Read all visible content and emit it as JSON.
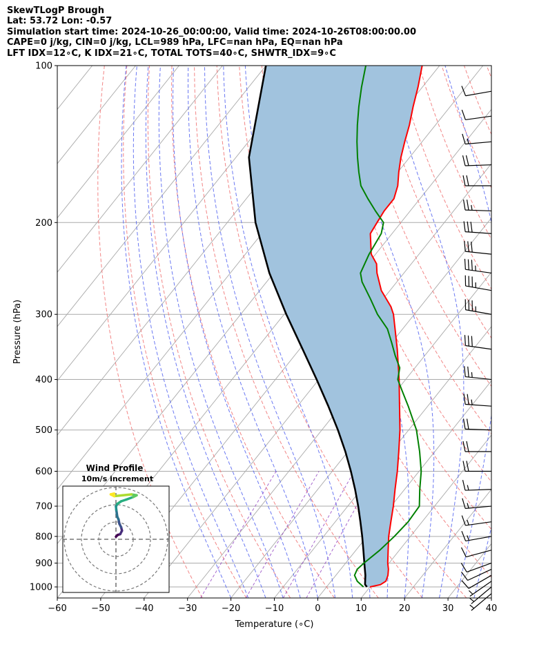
{
  "header": {
    "line1": "SkewTLogP Brough",
    "line2": "Lat: 53.72   Lon: -0.57",
    "line3": "Simulation start time: 2024-10-26_00:00:00, Valid time: 2024-10-26T08:00:00.00",
    "line4": "CAPE=0 j/kg, CIN=0 j/kg, LCL=989 hPa, LFC=nan hPa, EQ=nan hPa",
    "line5": "LFT IDX=12∘C, K IDX=21∘C, TOTAL TOTS=40∘C, SHWTR_IDX=9∘C"
  },
  "chart_data": [
    {
      "type": "line",
      "subtype": "skew-t log-p",
      "xlabel": "Temperature (∘C)",
      "ylabel": "Pressure (hPa)",
      "xlim": [
        -60,
        40
      ],
      "ylim": [
        1050,
        100
      ],
      "y_scale": "log",
      "x_ticks": [
        -60,
        -50,
        -40,
        -30,
        -20,
        -10,
        0,
        10,
        20,
        30,
        40
      ],
      "x_tick_labels": [
        "−60",
        "−50",
        "−40",
        "−30",
        "−20",
        "−10",
        "0",
        "10",
        "20",
        "30",
        "40"
      ],
      "y_ticks": [
        100,
        200,
        300,
        400,
        500,
        600,
        700,
        800,
        900,
        1000
      ],
      "y_tick_labels": [
        "100",
        "200",
        "300",
        "400",
        "500",
        "600",
        "700",
        "800",
        "900",
        "1000"
      ],
      "grid": true,
      "colors": {
        "temperature": "#ff0000",
        "dewpoint": "#008000",
        "parcel": "#000000",
        "shade": "#a1c3de",
        "isotherm": "#aaaaaa",
        "dry_adiabat": "#f07070",
        "moist_adiabat": "#5060f0",
        "mixing_ratio": "#9040c0"
      },
      "series": [
        {
          "key": "temperature",
          "pressure": [
            1000,
            990,
            975,
            950,
            925,
            900,
            850,
            800,
            750,
            700,
            650,
            600,
            550,
            500,
            450,
            400,
            350,
            300,
            290,
            270,
            250,
            240,
            230,
            210,
            200,
            190,
            180,
            170,
            160,
            150,
            140,
            130,
            120,
            110,
            100
          ],
          "temperature": [
            10.0,
            12.0,
            12.6,
            12.0,
            11.0,
            9.7,
            7.4,
            5.0,
            2.8,
            0.5,
            -2.2,
            -5.0,
            -8.3,
            -12.0,
            -16.5,
            -21.5,
            -27.5,
            -34.8,
            -36.8,
            -42.0,
            -46.2,
            -48.0,
            -51.0,
            -55.0,
            -55.5,
            -56.0,
            -56.0,
            -57.5,
            -59.8,
            -62.0,
            -64.0,
            -66.0,
            -68.5,
            -71.0,
            -74.0
          ]
        },
        {
          "key": "dewpoint",
          "pressure": [
            1000,
            975,
            950,
            925,
            900,
            850,
            800,
            750,
            700,
            650,
            600,
            550,
            500,
            450,
            420,
            400,
            380,
            360,
            340,
            320,
            300,
            280,
            260,
            250,
            230,
            210,
            200,
            190,
            180,
            170,
            160,
            150,
            140,
            130,
            120,
            110,
            100
          ],
          "temperature": [
            8.5,
            6.0,
            4.3,
            3.8,
            4.2,
            5.5,
            6.3,
            6.8,
            6.5,
            3.5,
            0.5,
            -3.5,
            -8.2,
            -14.5,
            -18.8,
            -21.8,
            -23.5,
            -26.8,
            -30.0,
            -33.5,
            -38.5,
            -43.0,
            -48.0,
            -50.0,
            -51.5,
            -52.5,
            -54.0,
            -58.0,
            -62.0,
            -66.0,
            -69.0,
            -72.0,
            -75.0,
            -78.0,
            -81.0,
            -84.0,
            -87.0
          ]
        },
        {
          "key": "parcel",
          "pressure": [
            1000,
            989,
            950,
            900,
            850,
            800,
            750,
            700,
            650,
            600,
            550,
            500,
            450,
            400,
            350,
            300,
            250,
            200,
            150,
            100
          ],
          "temperature": [
            9.3,
            8.4,
            6.8,
            4.3,
            1.7,
            -1.1,
            -4.2,
            -7.6,
            -11.4,
            -15.7,
            -20.6,
            -26.3,
            -32.9,
            -40.5,
            -49.3,
            -59.5,
            -71.0,
            -83.5,
            -97.0,
            -110.0
          ]
        }
      ],
      "wind_barbs": {
        "units": "m/s",
        "pressure": [
          1030,
          1000,
          975,
          950,
          925,
          900,
          850,
          800,
          750,
          700,
          650,
          600,
          550,
          500,
          450,
          400,
          350,
          300,
          270,
          250,
          230,
          210,
          190,
          170,
          155,
          140,
          125,
          112
        ],
        "speed": [
          6,
          7,
          7,
          8,
          9,
          10,
          11,
          13,
          15,
          16,
          17,
          19,
          20,
          22,
          24,
          27,
          30,
          33,
          35,
          34,
          32,
          30,
          26,
          22,
          18,
          14,
          12,
          10
        ],
        "direction": [
          230,
          230,
          235,
          240,
          245,
          250,
          255,
          260,
          262,
          265,
          268,
          270,
          270,
          272,
          274,
          276,
          278,
          280,
          280,
          278,
          276,
          274,
          272,
          270,
          268,
          265,
          262,
          260
        ]
      }
    },
    {
      "type": "scatter",
      "subtype": "hodograph",
      "title": "Wind Profile",
      "subtitle": "10m/s increment",
      "ring_step": 10,
      "rings": [
        10,
        20,
        30
      ],
      "colormap": "viridis",
      "u": [
        0,
        1.0,
        2.5,
        3.5,
        3.0,
        2.0,
        1.5,
        0.8,
        0.5,
        0.2,
        0.0,
        0.8,
        3.0,
        6.0,
        10.0,
        12.0,
        9.0,
        4.0,
        -1.0,
        -3.0,
        -1.0
      ],
      "v": [
        1.5,
        2.5,
        3.0,
        5.0,
        7.0,
        9.0,
        11.5,
        13.0,
        15.0,
        17.0,
        19.0,
        20.5,
        22.0,
        23.0,
        24.5,
        25.5,
        26.0,
        25.5,
        25.0,
        26.0,
        26.5
      ]
    }
  ]
}
